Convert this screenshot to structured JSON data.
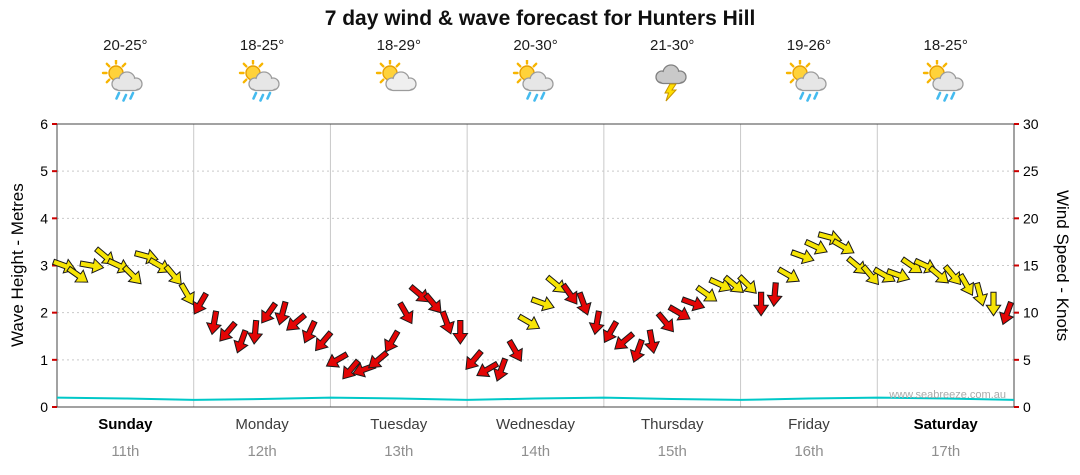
{
  "title": "7 day wind & wave forecast for Hunters Hill",
  "watermark": "www.seabreeze.com.au",
  "days": [
    {
      "name": "Sunday",
      "date": "11th",
      "temps": "20-25°",
      "icon": "sun-cloud-rain",
      "weekend": true
    },
    {
      "name": "Monday",
      "date": "12th",
      "temps": "18-25°",
      "icon": "sun-cloud-rain",
      "weekend": false
    },
    {
      "name": "Tuesday",
      "date": "13th",
      "temps": "18-29°",
      "icon": "sun-cloud",
      "weekend": false
    },
    {
      "name": "Wednesday",
      "date": "14th",
      "temps": "20-30°",
      "icon": "sun-cloud-rain",
      "weekend": false
    },
    {
      "name": "Thursday",
      "date": "15th",
      "temps": "21-30°",
      "icon": "thunderstorm",
      "weekend": false
    },
    {
      "name": "Friday",
      "date": "16th",
      "temps": "19-26°",
      "icon": "sun-cloud-rain",
      "weekend": false
    },
    {
      "name": "Saturday",
      "date": "17th",
      "temps": "18-25°",
      "icon": "sun-cloud-rain",
      "weekend": true
    }
  ],
  "axes": {
    "left_label": "Wave Height - Metres",
    "right_label": "Wind Speed - Knots",
    "left_ticks": [
      0,
      1,
      2,
      3,
      4,
      5,
      6
    ],
    "right_ticks": [
      0,
      5,
      10,
      15,
      20,
      25,
      30
    ]
  },
  "colors": {
    "yellow": "#F6E405",
    "red": "#E30505",
    "wave": "#00C8C8",
    "grid": "#C9C9C9",
    "tick": "#CC0000",
    "frame": "#444444",
    "watermark": "#AAAAAA"
  },
  "chart_data": {
    "type": "line",
    "title": "7 day wind & wave forecast for Hunters Hill",
    "x_axis": {
      "unit": "days",
      "range": [
        0,
        7
      ],
      "categories": [
        "Sunday 11th",
        "Monday 12th",
        "Tuesday 13th",
        "Wednesday 14th",
        "Thursday 15th",
        "Friday 16th",
        "Saturday 17th"
      ]
    },
    "y_left": {
      "label": "Wave Height - Metres",
      "range": [
        0,
        6
      ]
    },
    "y_right": {
      "label": "Wind Speed - Knots",
      "range": [
        0,
        30
      ]
    },
    "legend": "none",
    "grid": true,
    "series": [
      {
        "name": "Wind Speed",
        "style": "direction-arrows",
        "units": "knots",
        "point_format": [
          "x_day",
          "knots",
          "direction_deg",
          "color(y=yellow,r=red)"
        ],
        "points": [
          [
            0.05,
            15,
            20,
            "y"
          ],
          [
            0.15,
            14,
            35,
            "y"
          ],
          [
            0.25,
            15,
            10,
            "y"
          ],
          [
            0.35,
            16,
            40,
            "y"
          ],
          [
            0.45,
            15,
            25,
            "y"
          ],
          [
            0.55,
            14,
            45,
            "y"
          ],
          [
            0.65,
            16,
            15,
            "y"
          ],
          [
            0.75,
            15,
            30,
            "y"
          ],
          [
            0.85,
            14,
            50,
            "y"
          ],
          [
            0.95,
            12,
            60,
            "y"
          ],
          [
            1.05,
            11,
            120,
            "r"
          ],
          [
            1.15,
            9,
            100,
            "r"
          ],
          [
            1.25,
            8,
            130,
            "r"
          ],
          [
            1.35,
            7,
            110,
            "r"
          ],
          [
            1.45,
            8,
            95,
            "r"
          ],
          [
            1.55,
            10,
            125,
            "r"
          ],
          [
            1.65,
            10,
            105,
            "r"
          ],
          [
            1.75,
            9,
            140,
            "r"
          ],
          [
            1.85,
            8,
            115,
            "r"
          ],
          [
            1.95,
            7,
            130,
            "r"
          ],
          [
            2.05,
            5,
            150,
            "r"
          ],
          [
            2.15,
            4,
            130,
            "r"
          ],
          [
            2.25,
            4,
            160,
            "r"
          ],
          [
            2.35,
            5,
            140,
            "r"
          ],
          [
            2.45,
            7,
            120,
            "r"
          ],
          [
            2.55,
            10,
            60,
            "r"
          ],
          [
            2.65,
            12,
            40,
            "r"
          ],
          [
            2.75,
            11,
            50,
            "r"
          ],
          [
            2.85,
            9,
            70,
            "r"
          ],
          [
            2.95,
            8,
            90,
            "r"
          ],
          [
            3.05,
            5,
            130,
            "r"
          ],
          [
            3.15,
            4,
            150,
            "r"
          ],
          [
            3.25,
            4,
            110,
            "r"
          ],
          [
            3.35,
            6,
            60,
            "r"
          ],
          [
            3.45,
            9,
            30,
            "y"
          ],
          [
            3.55,
            11,
            20,
            "y"
          ],
          [
            3.65,
            13,
            40,
            "y"
          ],
          [
            3.75,
            12,
            55,
            "r"
          ],
          [
            3.85,
            11,
            70,
            "r"
          ],
          [
            3.95,
            9,
            100,
            "r"
          ],
          [
            4.05,
            8,
            120,
            "r"
          ],
          [
            4.15,
            7,
            140,
            "r"
          ],
          [
            4.25,
            6,
            110,
            "r"
          ],
          [
            4.35,
            7,
            80,
            "r"
          ],
          [
            4.45,
            9,
            50,
            "r"
          ],
          [
            4.55,
            10,
            30,
            "r"
          ],
          [
            4.65,
            11,
            20,
            "r"
          ],
          [
            4.75,
            12,
            35,
            "y"
          ],
          [
            4.85,
            13,
            25,
            "y"
          ],
          [
            4.95,
            13,
            40,
            "y"
          ],
          [
            5.05,
            13,
            45,
            "y"
          ],
          [
            5.15,
            11,
            90,
            "r"
          ],
          [
            5.25,
            12,
            95,
            "r"
          ],
          [
            5.35,
            14,
            30,
            "y"
          ],
          [
            5.45,
            16,
            20,
            "y"
          ],
          [
            5.55,
            17,
            25,
            "y"
          ],
          [
            5.65,
            18,
            15,
            "y"
          ],
          [
            5.75,
            17,
            30,
            "y"
          ],
          [
            5.85,
            15,
            40,
            "y"
          ],
          [
            5.95,
            14,
            50,
            "y"
          ],
          [
            6.05,
            14,
            30,
            "y"
          ],
          [
            6.15,
            14,
            20,
            "y"
          ],
          [
            6.25,
            15,
            35,
            "y"
          ],
          [
            6.35,
            15,
            25,
            "y"
          ],
          [
            6.45,
            14,
            40,
            "y"
          ],
          [
            6.55,
            14,
            50,
            "y"
          ],
          [
            6.65,
            13,
            60,
            "y"
          ],
          [
            6.75,
            12,
            75,
            "y"
          ],
          [
            6.85,
            11,
            90,
            "y"
          ],
          [
            6.95,
            10,
            110,
            "r"
          ]
        ]
      },
      {
        "name": "Wave Height",
        "style": "line",
        "units": "metres",
        "color": "#00C8C8",
        "x": [
          0,
          0.5,
          1,
          1.5,
          2,
          2.5,
          3,
          3.5,
          4,
          4.5,
          5,
          5.5,
          6,
          6.5,
          7
        ],
        "values": [
          0.2,
          0.18,
          0.15,
          0.17,
          0.2,
          0.18,
          0.15,
          0.18,
          0.2,
          0.17,
          0.15,
          0.18,
          0.2,
          0.18,
          0.15
        ]
      }
    ]
  }
}
